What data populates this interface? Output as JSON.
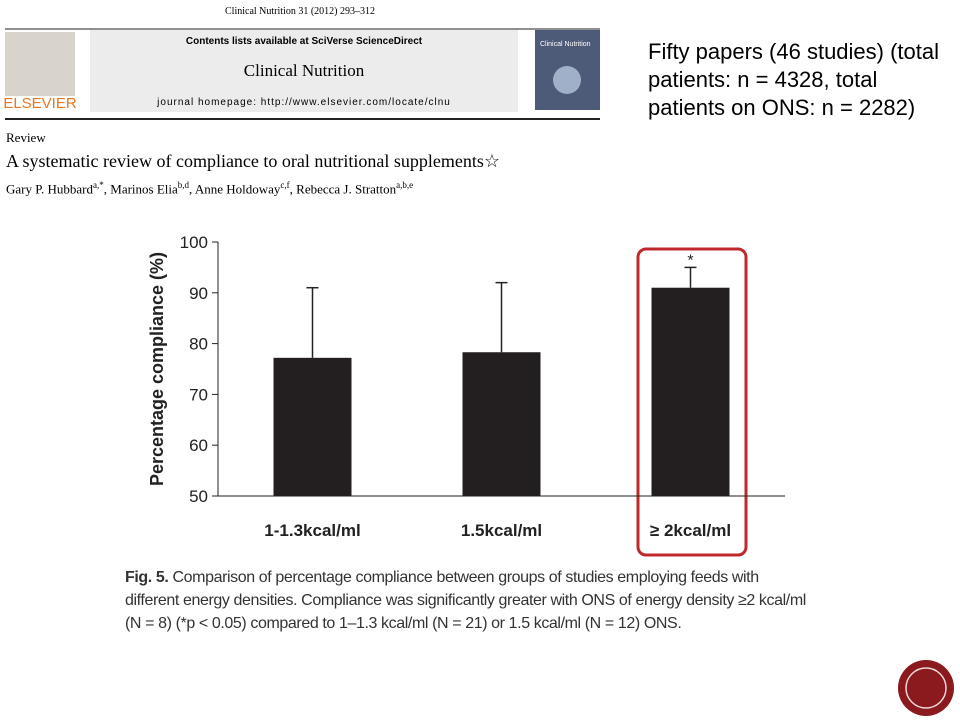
{
  "header": {
    "journal_ref": "Clinical Nutrition 31 (2012) 293–312",
    "contents": "Contents lists available at SciVerse ScienceDirect",
    "journal": "Clinical Nutrition",
    "homepage": "journal homepage: http://www.elsevier.com/locate/clnu",
    "publisher": "ELSEVIER",
    "section": "Review",
    "title": "A systematic review of compliance to oral nutritional supplements☆",
    "authors": [
      {
        "name": "Gary P. Hubbard",
        "affil": "a,*"
      },
      {
        "name": "Marinos Elia",
        "affil": "b,d"
      },
      {
        "name": "Anne Holdoway",
        "affil": "c,f"
      },
      {
        "name": "Rebecca J. Stratton",
        "affil": "a,b,e"
      }
    ]
  },
  "note": "Fifty papers (46 studies) (total patients: n = 4328, total patients on ONS: n = 2282)",
  "chart_data": {
    "type": "bar",
    "ylabel": "Percentage compliance (%)",
    "categories": [
      "1-1.3kcal/ml",
      "1.5kcal/ml",
      "≥ 2kcal/ml"
    ],
    "values": [
      77.2,
      78.3,
      91
    ],
    "errors": [
      13.8,
      13.7,
      4
    ],
    "significance": [
      null,
      null,
      "*"
    ],
    "color": "#231f20",
    "ylim": [
      50,
      100
    ],
    "yticks": [
      50,
      60,
      70,
      80,
      90,
      100
    ]
  },
  "caption": {
    "label": "Fig. 5.",
    "text": "Comparison of percentage compliance between groups of studies employing feeds with different energy densities. Compliance was significantly greater with ONS of energy density ≥2 kcal/ml (N = 8) (*p < 0.05) compared to 1–1.3 kcal/ml (N = 21) or 1.5 kcal/ml (N = 12) ONS."
  }
}
